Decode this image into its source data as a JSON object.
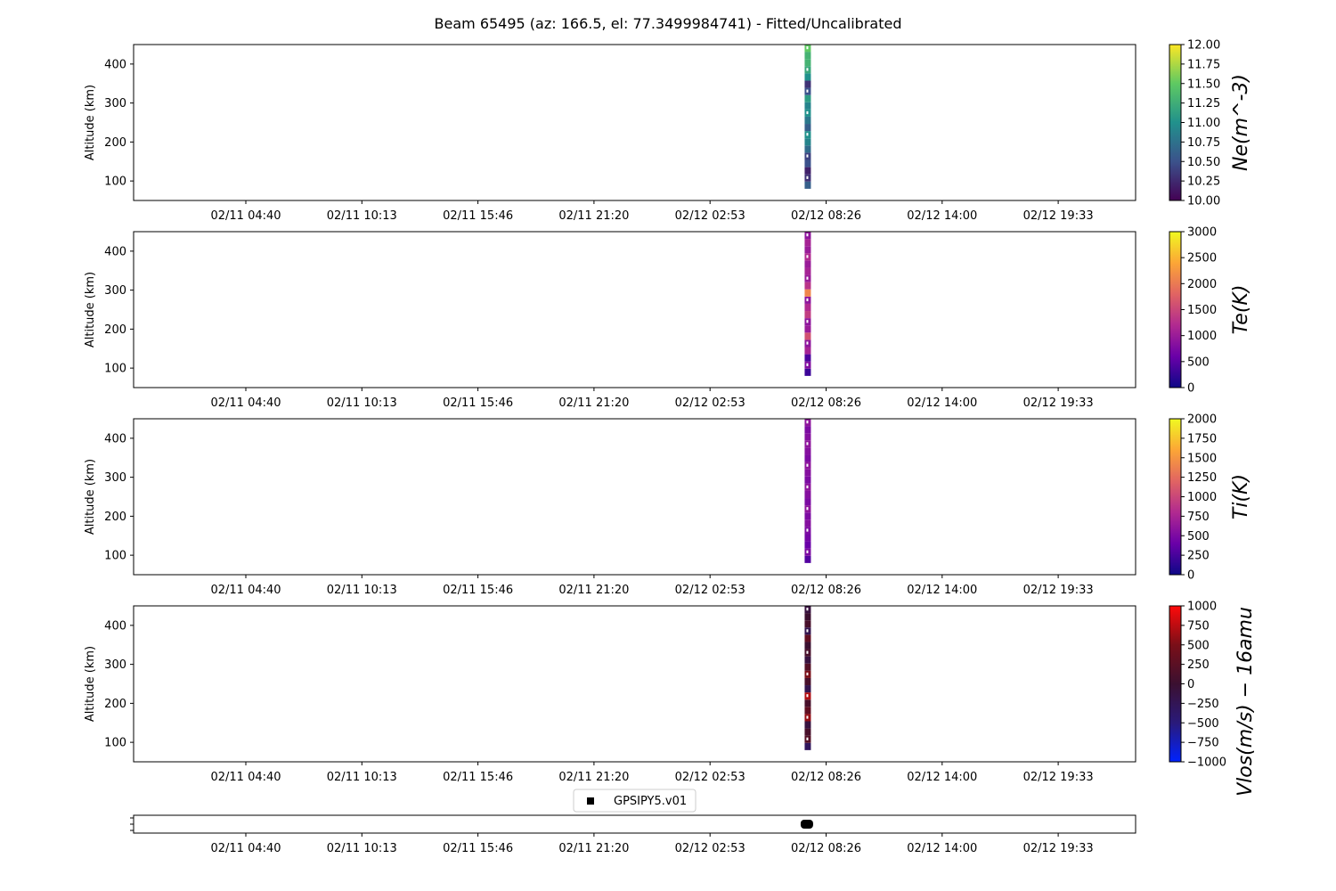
{
  "title": "Beam 65495 (az: 166.5, el: 77.3499984741) - Fitted/Uncalibrated",
  "chart_data": {
    "type": "heatmap",
    "x_ticks": [
      "02/11 04:40",
      "02/11 10:13",
      "02/11 15:46",
      "02/11 21:20",
      "02/12 02:53",
      "02/12 08:26",
      "02/12 14:00",
      "02/12 19:33"
    ],
    "data_time_label": "02/12 07:30",
    "panels": [
      {
        "id": "ne",
        "ylabel": "Altitude (km)",
        "y_ticks": [
          100,
          200,
          300,
          400
        ],
        "ylim": [
          50,
          450
        ],
        "altitude_range": [
          80,
          450
        ],
        "colorbar": {
          "label": "Ne(m^-3)",
          "ticks": [
            "12.00",
            "11.75",
            "11.50",
            "11.25",
            "11.00",
            "10.75",
            "10.50",
            "10.25",
            "10.00"
          ],
          "range": [
            10,
            12
          ],
          "colormap": "viridis",
          "colors": [
            "#440154",
            "#3b528b",
            "#21918c",
            "#5ec962",
            "#fde725"
          ]
        },
        "values": [
          10.6,
          10.3,
          10.2,
          10.5,
          10.4,
          10.7,
          10.9,
          11.0,
          10.6,
          10.8,
          11.0,
          10.9,
          11.1,
          10.5,
          10.3,
          11.0,
          11.2,
          11.3,
          11.3,
          11.5
        ]
      },
      {
        "id": "te",
        "ylabel": "Altitude (km)",
        "y_ticks": [
          100,
          200,
          300,
          400
        ],
        "ylim": [
          50,
          450
        ],
        "altitude_range": [
          80,
          450
        ],
        "colorbar": {
          "label": "Te(K)",
          "ticks": [
            "3000",
            "2500",
            "2000",
            "1500",
            "1000",
            "500",
            "0"
          ],
          "range": [
            0,
            3000
          ],
          "colormap": "plasma",
          "colors": [
            "#0d0887",
            "#6a00a8",
            "#b12a90",
            "#e16462",
            "#fca636",
            "#f0f921"
          ]
        },
        "values": [
          300,
          800,
          400,
          1100,
          900,
          1600,
          1000,
          900,
          1400,
          1200,
          900,
          2100,
          1300,
          1000,
          1100,
          1000,
          1200,
          1000,
          1100,
          900
        ]
      },
      {
        "id": "ti",
        "ylabel": "Altitude (km)",
        "y_ticks": [
          100,
          200,
          300,
          400
        ],
        "ylim": [
          50,
          450
        ],
        "altitude_range": [
          80,
          450
        ],
        "colorbar": {
          "label": "Ti(K)",
          "ticks": [
            "2000",
            "1750",
            "1500",
            "1250",
            "1000",
            "750",
            "500",
            "250",
            "0"
          ],
          "range": [
            0,
            2000
          ],
          "colormap": "plasma",
          "colors": [
            "#0d0887",
            "#6a00a8",
            "#b12a90",
            "#e16462",
            "#fca636",
            "#f0f921"
          ]
        },
        "values": [
          300,
          500,
          400,
          450,
          500,
          550,
          500,
          600,
          500,
          550,
          600,
          500,
          550,
          600,
          500,
          550,
          600,
          550,
          500,
          600
        ]
      },
      {
        "id": "vlos",
        "ylabel": "Altitude (km)",
        "y_ticks": [
          100,
          200,
          300,
          400
        ],
        "ylim": [
          50,
          450
        ],
        "altitude_range": [
          80,
          450
        ],
        "colorbar": {
          "label": "Vlos(m/s) − 16amu",
          "ticks": [
            "1000",
            "750",
            "500",
            "250",
            "0",
            "−250",
            "−500",
            "−750",
            "−1000"
          ],
          "range": [
            -1000,
            1000
          ],
          "colormap": "seismic-dark",
          "colors": [
            "#0022ff",
            "#2a1a7a",
            "#3b1030",
            "#7a0f18",
            "#ff0a0a"
          ]
        },
        "values": [
          -300,
          200,
          100,
          -100,
          600,
          300,
          100,
          700,
          -200,
          100,
          500,
          200,
          -100,
          100,
          0,
          300,
          -200,
          100,
          0,
          -100
        ]
      }
    ],
    "legend": {
      "label": "GPSIPY5.v01",
      "placement": "top-center",
      "marker": "square",
      "color": "#000000"
    },
    "instrument_marker_time": "02/12 07:30"
  }
}
